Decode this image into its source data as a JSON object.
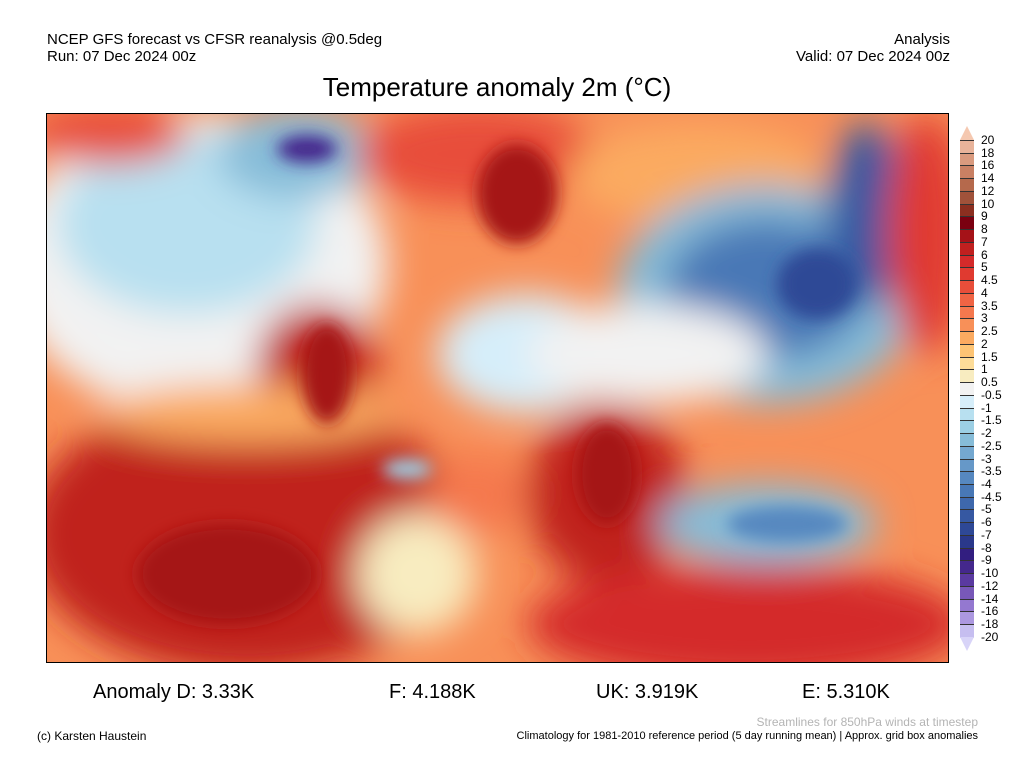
{
  "header": {
    "line1_left": "NCEP GFS forecast vs CFSR reanalysis @0.5deg",
    "line2_left": "Run: 07 Dec 2024 00z",
    "line1_right": "Analysis",
    "line2_right": "Valid: 07 Dec 2024 00z",
    "title": "Temperature anomaly 2m (°C)"
  },
  "colorbar": {
    "labels": [
      "20",
      "18",
      "16",
      "14",
      "12",
      "10",
      "9",
      "8",
      "7",
      "6",
      "5",
      "4.5",
      "4",
      "3.5",
      "3",
      "2.5",
      "2",
      "1.5",
      "1",
      "0.5",
      "-0.5",
      "-1",
      "-1.5",
      "-2",
      "-2.5",
      "-3",
      "-3.5",
      "-4",
      "-4.5",
      "-5",
      "-6",
      "-7",
      "-8",
      "-9",
      "-10",
      "-12",
      "-14",
      "-16",
      "-18",
      "-20"
    ],
    "top_arrow_color": "#f5c8b0",
    "bottom_arrow_color": "#d8d4f8",
    "colors": [
      "#e8b39a",
      "#d99a7e",
      "#c98063",
      "#b5694c",
      "#a0523a",
      "#8b2f20",
      "#7a0010",
      "#a51218",
      "#c0201f",
      "#d42a2a",
      "#e03a30",
      "#e84e3a",
      "#f06444",
      "#f5784e",
      "#f89058",
      "#fbaa60",
      "#fdc474",
      "#fddc98",
      "#f8ecc0",
      "#f2f2f2",
      "#d6eefa",
      "#b8e0f0",
      "#9ccfe4",
      "#86bcd8",
      "#74a8d0",
      "#6698c8",
      "#5688c0",
      "#4878b6",
      "#3e68ac",
      "#3658a2",
      "#2e4896",
      "#2a388a",
      "#321e80",
      "#44288c",
      "#5a3aa0",
      "#7858b8",
      "#9478d0",
      "#ac98e0",
      "#c6bef0"
    ]
  },
  "stats": {
    "d": "Anomaly D: 3.33K",
    "f": "F: 4.188K",
    "uk": "UK: 3.919K",
    "e": "E: 5.310K"
  },
  "footer": {
    "credit": "(c) Karsten Haustein",
    "streamlines": "Streamlines for 850hPa winds at timestep",
    "climatology": "Climatology for 1981-2010 reference period (5 day running mean) | Approx. grid box anomalies"
  }
}
